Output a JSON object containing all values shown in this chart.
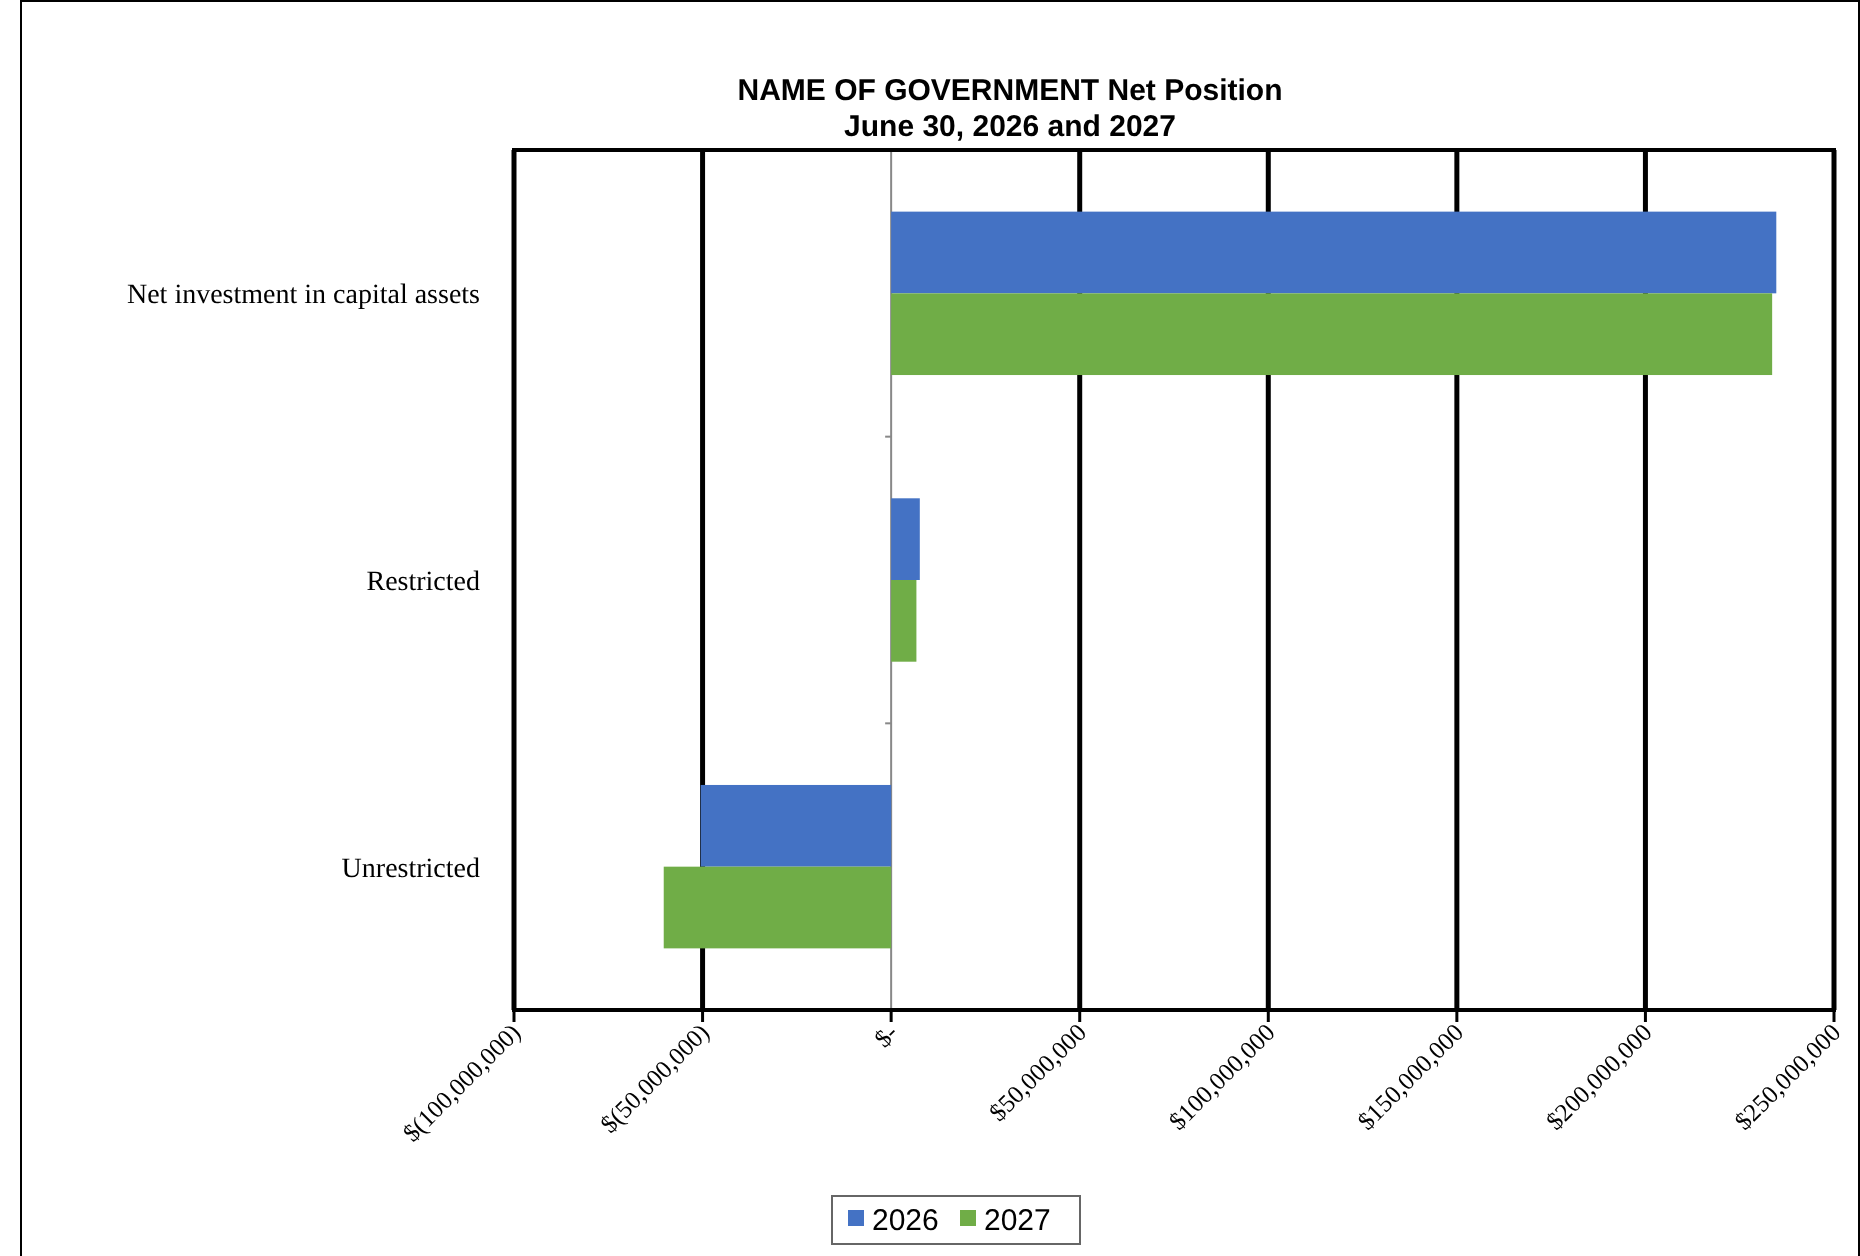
{
  "chart_data": {
    "type": "bar",
    "orientation": "horizontal",
    "title": "NAME OF GOVERNMENT Net Position",
    "subtitle": "June 30, 2026 and 2027",
    "categories": [
      "Net investment in capital assets",
      "Restricted",
      "Unrestricted"
    ],
    "series": [
      {
        "name": "2026",
        "color": "#4472c4",
        "values": [
          234700000,
          7600000,
          -50500000
        ]
      },
      {
        "name": "2027",
        "color": "#70ad47",
        "values": [
          233600000,
          6700000,
          -60300000
        ]
      }
    ],
    "xlim": [
      -100000000,
      250000000
    ],
    "xticks": [
      {
        "value": -100000000,
        "label": "$(100,000,000)"
      },
      {
        "value": -50000000,
        "label": "$(50,000,000)"
      },
      {
        "value": 0,
        "label": "$-"
      },
      {
        "value": 50000000,
        "label": "$50,000,000"
      },
      {
        "value": 100000000,
        "label": "$100,000,000"
      },
      {
        "value": 150000000,
        "label": "$150,000,000"
      },
      {
        "value": 200000000,
        "label": "$200,000,000"
      },
      {
        "value": 250000000,
        "label": "$250,000,000"
      }
    ],
    "grid": "x",
    "legend": "bottom"
  }
}
